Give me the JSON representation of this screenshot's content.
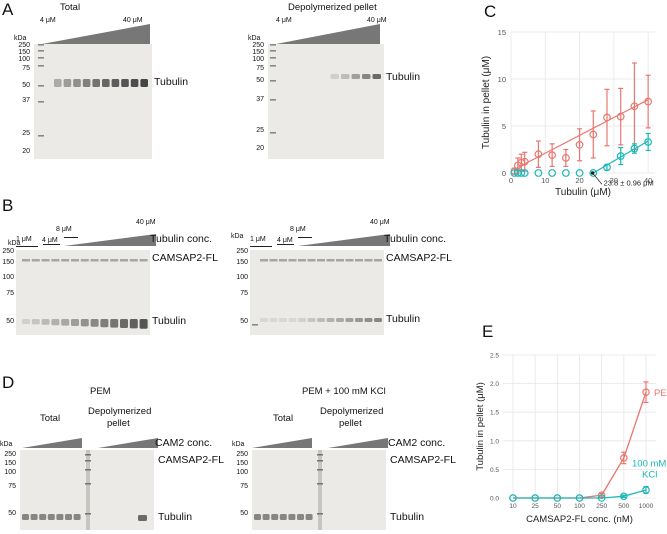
{
  "panels": {
    "A": {
      "letter": "A",
      "left": {
        "title": "Total",
        "low": "4 μM",
        "high": "40 μM",
        "band": "Tubulin"
      },
      "right": {
        "title": "Depolymerized pellet",
        "low": "4 μM",
        "high": "40 μM",
        "band": "Tubulin"
      },
      "kda": "kDa",
      "markers": [
        "250",
        "150",
        "100",
        "75",
        "50",
        "37",
        "25",
        "20"
      ]
    },
    "B": {
      "letter": "B",
      "left": {
        "l1": "1 μM",
        "l4": "4 μM",
        "l8": "8 μM",
        "l40": "40 μM",
        "conc": "Tubulin conc.",
        "upper": "CAMSAP2-FL",
        "lower": "Tubulin"
      },
      "right": {
        "l1": "1 μM",
        "l4": "4 μM",
        "l8": "8 μM",
        "l40": "40 μM",
        "conc": "Tubulin conc.",
        "upper": "CAMSAP2-FL",
        "lower": "Tubulin"
      },
      "kda": "kDa",
      "markers": [
        "250",
        "150",
        "100",
        "75",
        "50"
      ]
    },
    "C": {
      "letter": "C"
    },
    "D": {
      "letter": "D",
      "left": {
        "title": "PEM",
        "total": "Total",
        "depol1": "Depolymerized",
        "depol2": "pellet",
        "conc": "CAM2 conc.",
        "upper": "CAMSAP2-FL",
        "lower": "Tubulin"
      },
      "right": {
        "title": "PEM + 100 mM KCl",
        "total": "Total",
        "depol1": "Depolymerized",
        "depol2": "pellet",
        "conc": "CAM2 conc.",
        "upper": "CAMSAP2-FL",
        "lower": "Tubulin"
      },
      "kda": "kDa",
      "markers": [
        "250",
        "150",
        "100",
        "75",
        "50"
      ]
    },
    "E": {
      "letter": "E"
    }
  },
  "chart_data": [
    {
      "id": "C",
      "type": "scatter",
      "title": "",
      "xlabel": "Tubulin (μM)",
      "ylabel": "Tubulin in pellet (μM)",
      "xlim": [
        0,
        42
      ],
      "ylim": [
        0,
        15
      ],
      "xticks": [
        0,
        10,
        20,
        30,
        40
      ],
      "yticks": [
        0,
        5,
        10,
        15
      ],
      "annotation": "23.8 ± 0.96 μM",
      "series": [
        {
          "name": "red",
          "color": "#e8776f",
          "x": [
            1,
            2,
            3,
            4,
            8,
            12,
            16,
            20,
            24,
            28,
            32,
            36,
            40
          ],
          "y": [
            0.2,
            0.8,
            1.1,
            1.2,
            2.0,
            1.9,
            1.6,
            3.0,
            4.1,
            5.9,
            6.0,
            7.1,
            7.6
          ],
          "err": [
            0.3,
            0.8,
            0.9,
            1.0,
            1.4,
            1.2,
            0.9,
            1.7,
            2.5,
            3.0,
            3.0,
            4.6,
            2.8
          ],
          "fit": [
            [
              1,
              0.4
            ],
            [
              40,
              7.8
            ]
          ]
        },
        {
          "name": "cyan",
          "color": "#1bb8b8",
          "x": [
            1,
            2,
            3,
            4,
            8,
            12,
            16,
            20,
            24,
            28,
            32,
            36,
            40
          ],
          "y": [
            0,
            0,
            0,
            0,
            0,
            0,
            0,
            0,
            0,
            0.6,
            1.8,
            2.6,
            3.3
          ],
          "err": [
            0,
            0,
            0,
            0,
            0,
            0,
            0,
            0,
            0,
            0.3,
            0.9,
            0.5,
            0.9
          ],
          "fit": [
            [
              24,
              0
            ],
            [
              40,
              3.4
            ]
          ]
        }
      ]
    },
    {
      "id": "E",
      "type": "line",
      "title": "",
      "xlabel": "CAMSAP2-FL conc. (nM)",
      "ylabel": "Tubulin in pellet (μM)",
      "categories": [
        "10",
        "25",
        "50",
        "100",
        "250",
        "500",
        "1000"
      ],
      "ylim": [
        0,
        2.5
      ],
      "yticks": [
        "0.0",
        "0.5",
        "1.0",
        "1.5",
        "2.0",
        "2.5"
      ],
      "series": [
        {
          "name": "PEM",
          "color": "#e8776f",
          "values": [
            0,
            0,
            0,
            0,
            0.05,
            0.7,
            1.85
          ],
          "err": [
            0,
            0,
            0,
            0,
            0.03,
            0.1,
            0.18
          ]
        },
        {
          "name": "100 mM KCl",
          "color": "#1bb8b8",
          "values": [
            0,
            0,
            0,
            0,
            0,
            0.03,
            0.14
          ],
          "err": [
            0,
            0,
            0,
            0,
            0,
            0.02,
            0.06
          ]
        }
      ],
      "legend": {
        "PEM": "PEM",
        "KCl1": "100 mM",
        "KCl2": "KCl"
      }
    }
  ],
  "colors": {
    "red": "#e8776f",
    "cyan": "#1bb8b8",
    "gel": "#eceae7",
    "band": "#6e6e6e"
  }
}
